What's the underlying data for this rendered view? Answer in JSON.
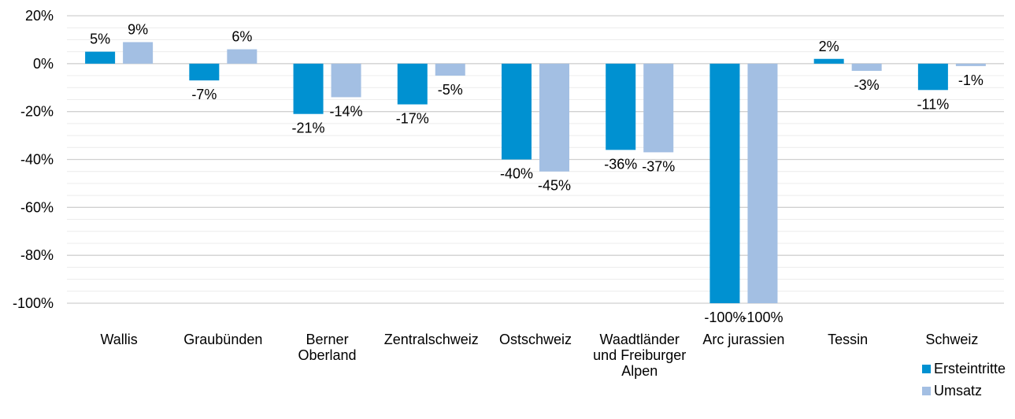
{
  "chart_data": {
    "type": "bar",
    "categories": [
      [
        "Wallis"
      ],
      [
        "Graubünden"
      ],
      [
        "Berner",
        "Oberland"
      ],
      [
        "Zentralschweiz"
      ],
      [
        "Ostschweiz"
      ],
      [
        "Waadtländer",
        "und Freiburger",
        "Alpen"
      ],
      [
        "Arc jurassien"
      ],
      [
        "Tessin"
      ],
      [
        "Schweiz"
      ]
    ],
    "series": [
      {
        "name": "Ersteintritte",
        "color": "#0091d1",
        "values": [
          5,
          -7,
          -21,
          -17,
          -40,
          -36,
          -100,
          2,
          -11
        ],
        "labels": [
          "5%",
          "-7%",
          "-21%",
          "-17%",
          "-40%",
          "-36%",
          "-100%",
          "2%",
          "-11%"
        ]
      },
      {
        "name": "Umsatz",
        "color": "#a3bfe3",
        "values": [
          9,
          6,
          -14,
          -5,
          -45,
          -37,
          -100,
          -3,
          -1
        ],
        "labels": [
          "9%",
          "6%",
          "-14%",
          "-5%",
          "-45%",
          "-37%",
          "-100%",
          "-3%",
          "-1%"
        ]
      }
    ],
    "yticks": [
      20,
      0,
      -20,
      -40,
      -60,
      -80,
      -100
    ],
    "ytick_labels": [
      "20%",
      "0%",
      "-20%",
      "-40%",
      "-60%",
      "-80%",
      "-100%"
    ],
    "ylim": [
      -100,
      20
    ],
    "grid": true,
    "legend_position": "bottom-right"
  }
}
